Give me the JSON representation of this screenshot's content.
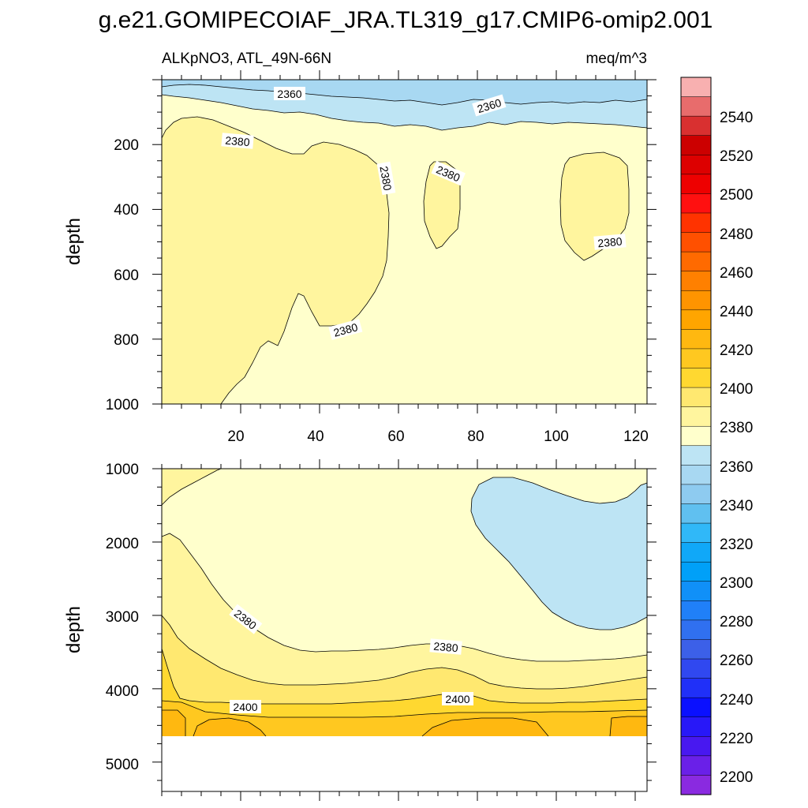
{
  "figure": {
    "title": "g.e21.GOMIPECOIAF_JRA.TL319_g17.CMIP6-omip2.001"
  },
  "chart_data": [
    {
      "type": "contour",
      "panel": "upper",
      "subtitle_left": "ALKpNO3, ATL_49N-66N",
      "subtitle_right": "meq/m^3",
      "xlabel": "",
      "ylabel": "depth",
      "xlim": [
        0,
        123
      ],
      "ylim": [
        0,
        1000
      ],
      "x_ticks": [
        20,
        40,
        60,
        80,
        100,
        120
      ],
      "y_ticks": [
        200,
        400,
        600,
        800,
        1000
      ],
      "contour_labels": [
        "2360",
        "2360",
        "2380",
        "2380",
        "2380",
        "2380",
        "2380"
      ]
    },
    {
      "type": "contour",
      "panel": "lower",
      "subtitle_left": "",
      "subtitle_right": "",
      "xlabel": "",
      "ylabel": "depth",
      "xlim": [
        0,
        123
      ],
      "ylim": [
        1000,
        5400
      ],
      "x_ticks": [
        20,
        40,
        60,
        80,
        100,
        120
      ],
      "y_ticks": [
        1000,
        2000,
        3000,
        4000,
        5000
      ],
      "contour_labels": [
        "2380",
        "2380",
        "2400",
        "2400"
      ]
    }
  ],
  "colorbar": {
    "labels": [
      "2540",
      "2520",
      "2500",
      "2480",
      "2460",
      "2440",
      "2420",
      "2400",
      "2380",
      "2360",
      "2340",
      "2320",
      "2300",
      "2280",
      "2260",
      "2240",
      "2220",
      "2200"
    ],
    "colors": [
      "#f8b0b0",
      "#e86c6c",
      "#d93030",
      "#cc0000",
      "#dd0000",
      "#ee0000",
      "#ff1010",
      "#ff3300",
      "#ff5000",
      "#ff6a00",
      "#ff8000",
      "#ff9400",
      "#ffa500",
      "#ffb810",
      "#ffc820",
      "#ffd830",
      "#ffe870",
      "#fff59e",
      "#ffffcc",
      "#bde4f4",
      "#a8d8f2",
      "#8ecbf0",
      "#60c0f0",
      "#30b8f8",
      "#10a8f8",
      "#00a0f8",
      "#1090f8",
      "#2080f8",
      "#3070f0",
      "#3c60e8",
      "#3048f0",
      "#2030f8",
      "#0a10ff",
      "#2818f8",
      "#4818f0",
      "#6a20e8",
      "#8a2ae0"
    ]
  },
  "palette": {
    "level_2360_below": "#bde4f4",
    "level_2360_mid": "#a8d8f2",
    "level_2380": "#ffffcc",
    "level_2385": "#fff59e",
    "level_2390": "#ffe870",
    "level_2395": "#ffd830",
    "level_2400": "#ffc820",
    "level_2405": "#ffb810"
  }
}
